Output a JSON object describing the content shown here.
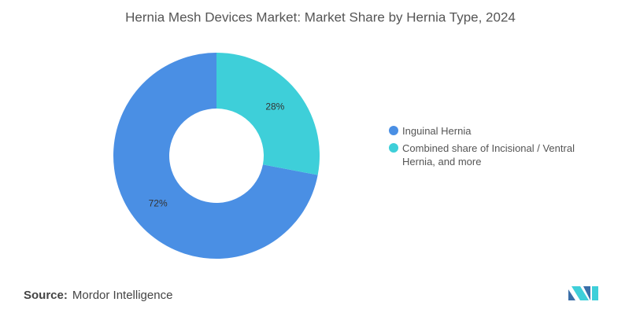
{
  "chart_data": {
    "type": "pie",
    "title": "Hernia Mesh Devices Market: Market Share by Hernia Type, 2024",
    "categories": [
      "Inguinal Hernia",
      "Combined share of Incisional / Ventral Hernia, and more"
    ],
    "values": [
      72,
      28
    ],
    "value_labels": [
      "72%",
      "28%"
    ],
    "colors": [
      "#4a8fe4",
      "#3ecfd9"
    ],
    "source_label": "Source:",
    "source": "Mordor Intelligence"
  }
}
